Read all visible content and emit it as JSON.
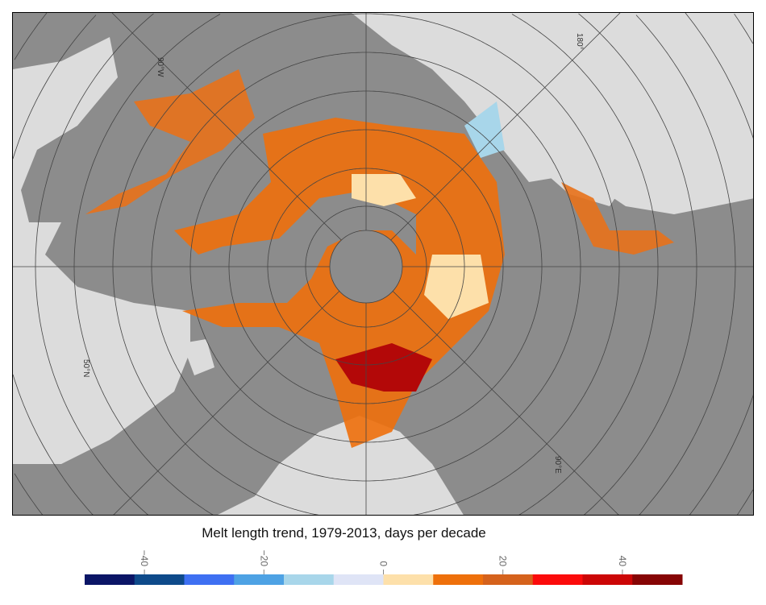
{
  "map": {
    "graticule_labels": [
      "90°W",
      "180°",
      "50°N",
      "90°E"
    ],
    "land_color": "#8c8c8c",
    "background_color": "#dcdcdc"
  },
  "colorbar": {
    "title": "Melt length trend, 1979-2013, days per decade",
    "range": [
      -50,
      50
    ],
    "tick_labels": [
      "−40",
      "−20",
      "0",
      "20",
      "40"
    ],
    "tick_values": [
      -40,
      -20,
      0,
      20,
      40
    ],
    "colors": [
      "#0b1566",
      "#0e4a8a",
      "#3e70f2",
      "#4ea2e4",
      "#a8d6ea",
      "#dfe4f6",
      "#fde0aa",
      "#ee700b",
      "#d5621c",
      "#fb0b0b",
      "#cc0606",
      "#860505"
    ]
  }
}
